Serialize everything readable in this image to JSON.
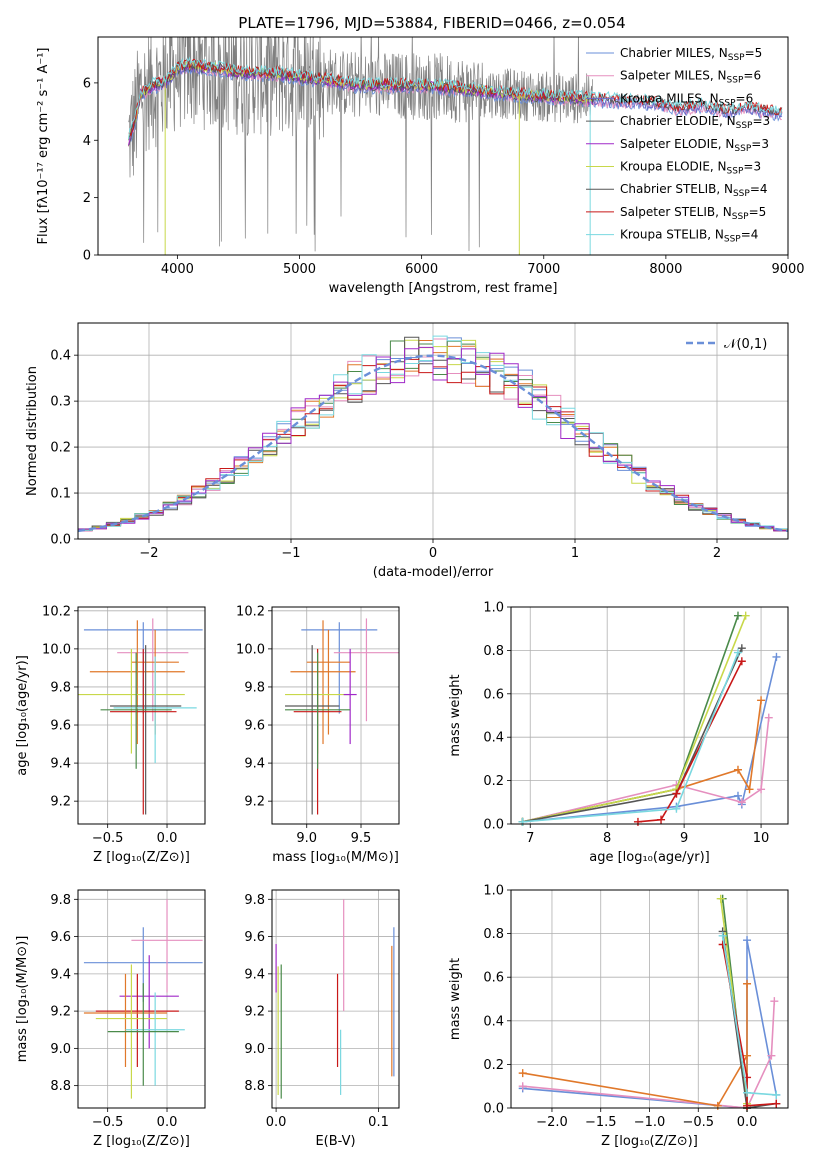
{
  "figure_title": "PLATE=1796, MJD=53884, FIBERID=0466, z=0.054",
  "colors": {
    "chabrier_miles": "#6a8fd8",
    "salpeter_miles": "#e58fbf",
    "kroupa_miles": "#6b6bc8",
    "chabrier_elodie": "#5a5a5a",
    "salpeter_elodie": "#a028c8",
    "kroupa_elodie": "#c8d84a",
    "chabrier_stelib": "#555555",
    "salpeter_stelib": "#c81818",
    "kroupa_stelib": "#7ad8e0",
    "orange": "#e0782a",
    "green": "#4a8a4a",
    "grid": "#b0b0b0",
    "data": "#808080"
  },
  "chart_data": [
    {
      "id": "spectrum",
      "type": "line",
      "title": "PLATE=1796, MJD=53884, FIBERID=0466, z=0.054",
      "xlabel": "wavelength [Angstrom, rest frame]",
      "ylabel": "Flux [fλ10⁻¹⁷ erg cm⁻² s⁻¹ A⁻¹]",
      "xlim": [
        3350,
        9000
      ],
      "ylim": [
        0,
        7.6
      ],
      "xticks": [
        4000,
        5000,
        6000,
        7000,
        8000,
        9000
      ],
      "yticks": [
        0,
        2,
        4,
        6
      ],
      "grid": false,
      "legend_position": "right",
      "legend": [
        {
          "label": "Chabrier MILES, N_SSP=5",
          "base": "Chabrier MILES, N",
          "sub": "SSP",
          "tail": "=5"
        },
        {
          "label": "Salpeter MILES, N_SSP=6",
          "base": "Salpeter MILES, N",
          "sub": "SSP",
          "tail": "=6"
        },
        {
          "label": "Kroupa MILES, N_SSP=6",
          "base": "Kroupa MILES, N",
          "sub": "SSP",
          "tail": "=6"
        },
        {
          "label": "Chabrier ELODIE, N_SSP=3",
          "base": "Chabrier ELODIE, N",
          "sub": "SSP",
          "tail": "=3"
        },
        {
          "label": "Salpeter ELODIE, N_SSP=3",
          "base": "Salpeter ELODIE, N",
          "sub": "SSP",
          "tail": "=3"
        },
        {
          "label": "Kroupa ELODIE, N_SSP=3",
          "base": "Kroupa ELODIE, N",
          "sub": "SSP",
          "tail": "=3"
        },
        {
          "label": "Chabrier STELIB, N_SSP=4",
          "base": "Chabrier STELIB, N",
          "sub": "SSP",
          "tail": "=4"
        },
        {
          "label": "Salpeter STELIB, N_SSP=5",
          "base": "Salpeter STELIB, N",
          "sub": "SSP",
          "tail": "=5"
        },
        {
          "label": "Kroupa STELIB, N_SSP=4",
          "base": "Kroupa STELIB, N",
          "sub": "SSP",
          "tail": "=4"
        }
      ],
      "continuum": {
        "x": [
          3600,
          3650,
          3700,
          3800,
          3900,
          4000,
          4100,
          4300,
          4500,
          4800,
          5000,
          5200,
          5500,
          5800,
          6000,
          6300,
          6600,
          6900,
          7100,
          7300,
          7500,
          7700,
          7900,
          8100,
          8300,
          8500,
          8700,
          8900
        ],
        "y": [
          4.0,
          4.6,
          5.6,
          5.9,
          6.0,
          6.5,
          6.6,
          6.5,
          6.35,
          6.3,
          6.2,
          6.1,
          5.9,
          5.9,
          5.9,
          5.8,
          5.65,
          5.55,
          5.5,
          5.45,
          5.4,
          5.35,
          5.3,
          5.1,
          5.2,
          5.0,
          5.1,
          4.95
        ]
      },
      "data_range": [
        3600,
        7400
      ]
    },
    {
      "id": "residuals",
      "type": "line",
      "xlabel": "(data-model)/error",
      "ylabel": "Normed distribution",
      "xlim": [
        -2.5,
        2.5
      ],
      "ylim": [
        0,
        0.47
      ],
      "xticks": [
        -2,
        -1,
        0,
        1,
        2
      ],
      "yticks": [
        0.0,
        0.1,
        0.2,
        0.3,
        0.4
      ],
      "grid": true,
      "legend": [
        {
          "label": "𝒩(0,1)"
        }
      ],
      "legend_position": "top-right",
      "bin_width": 0.1
    },
    {
      "id": "age_vs_Z",
      "type": "scatter",
      "xlabel": "Z [log₁₀(Z/Z⊙)]",
      "ylabel": "age  [log₁₀(age/yr)]",
      "xlim": [
        -0.75,
        0.32
      ],
      "ylim": [
        9.08,
        10.22
      ],
      "xticks": [
        -0.5,
        0.0
      ],
      "yticks": [
        9.2,
        9.4,
        9.6,
        9.8,
        10.0,
        10.2
      ],
      "grid": true,
      "points": [
        {
          "x": -0.2,
          "y": 10.1,
          "xerr": 0.5,
          "ylo": 9.66,
          "yhi": 10.14,
          "color": "chabrier_miles"
        },
        {
          "x": -0.12,
          "y": 9.98,
          "xerr": 0.3,
          "ylo": 9.62,
          "yhi": 10.16,
          "color": "salpeter_miles"
        },
        {
          "x": -0.1,
          "y": 9.93,
          "xerr": 0.2,
          "ylo": 9.55,
          "yhi": 10.1,
          "color": "orange"
        },
        {
          "x": -0.25,
          "y": 9.88,
          "xerr": 0.4,
          "ylo": 9.5,
          "yhi": 10.15,
          "color": "orange"
        },
        {
          "x": -0.3,
          "y": 9.76,
          "xerr": 0.45,
          "ylo": 9.45,
          "yhi": 10.0,
          "color": "kroupa_elodie"
        },
        {
          "x": -0.1,
          "y": 9.69,
          "xerr": 0.35,
          "ylo": 9.4,
          "yhi": 9.96,
          "color": "kroupa_stelib"
        },
        {
          "x": -0.18,
          "y": 9.7,
          "xerr": 0.3,
          "ylo": 9.13,
          "yhi": 10.02,
          "color": "chabrier_elodie"
        },
        {
          "x": -0.2,
          "y": 9.67,
          "xerr": 0.28,
          "ylo": 9.13,
          "yhi": 10.0,
          "color": "salpeter_stelib"
        },
        {
          "x": -0.26,
          "y": 9.68,
          "xerr": 0.3,
          "ylo": 9.37,
          "yhi": 9.98,
          "color": "green"
        }
      ]
    },
    {
      "id": "age_vs_mass",
      "type": "scatter",
      "xlabel": "mass [log₁₀(M/M⊙)]",
      "ylabel": "",
      "xlim": [
        8.68,
        9.85
      ],
      "ylim": [
        9.08,
        10.22
      ],
      "xticks": [
        9.0,
        9.5
      ],
      "yticks": [
        9.2,
        9.4,
        9.6,
        9.8,
        10.0,
        10.2
      ],
      "grid": true,
      "points": [
        {
          "x": 9.3,
          "y": 10.1,
          "xerr": 0.35,
          "ylo": 9.66,
          "yhi": 10.14,
          "color": "chabrier_miles"
        },
        {
          "x": 9.55,
          "y": 9.98,
          "xerr": 0.3,
          "ylo": 9.62,
          "yhi": 10.16,
          "color": "salpeter_miles"
        },
        {
          "x": 9.2,
          "y": 9.93,
          "xerr": 0.2,
          "ylo": 9.55,
          "yhi": 10.1,
          "color": "orange"
        },
        {
          "x": 9.15,
          "y": 9.88,
          "xerr": 0.3,
          "ylo": 9.5,
          "yhi": 10.15,
          "color": "orange"
        },
        {
          "x": 9.1,
          "y": 9.76,
          "xerr": 0.3,
          "ylo": 9.45,
          "yhi": 10.0,
          "color": "kroupa_elodie"
        },
        {
          "x": 9.4,
          "y": 9.76,
          "xerr": 0.06,
          "ylo": 9.5,
          "yhi": 10.0,
          "color": "salpeter_elodie"
        },
        {
          "x": 9.05,
          "y": 9.7,
          "xerr": 0.25,
          "ylo": 9.13,
          "yhi": 10.02,
          "color": "chabrier_elodie"
        },
        {
          "x": 9.1,
          "y": 9.67,
          "xerr": 0.22,
          "ylo": 9.13,
          "yhi": 10.0,
          "color": "salpeter_stelib"
        },
        {
          "x": 9.1,
          "y": 9.68,
          "xerr": 0.3,
          "ylo": 9.37,
          "yhi": 9.98,
          "color": "green"
        }
      ]
    },
    {
      "id": "mass_weight_vs_age",
      "type": "line",
      "xlabel": "age  [log₁₀(age/yr)]",
      "ylabel": "mass weight",
      "xlim": [
        6.75,
        10.35
      ],
      "ylim": [
        0,
        1.0
      ],
      "xticks": [
        7,
        8,
        9,
        10
      ],
      "yticks": [
        0.0,
        0.2,
        0.4,
        0.6,
        0.8,
        1.0
      ],
      "grid": true,
      "series": [
        {
          "color": "chabrier_miles",
          "x": [
            6.9,
            8.9,
            9.7,
            9.75,
            10.2
          ],
          "y": [
            0.01,
            0.08,
            0.13,
            0.09,
            0.77
          ]
        },
        {
          "color": "salpeter_miles",
          "x": [
            6.9,
            8.9,
            9.75,
            10.0,
            10.1
          ],
          "y": [
            0.01,
            0.18,
            0.1,
            0.16,
            0.49
          ]
        },
        {
          "color": "orange",
          "x": [
            6.9,
            8.9,
            9.7,
            9.85,
            10.0
          ],
          "y": [
            0.01,
            0.16,
            0.25,
            0.16,
            0.57
          ]
        },
        {
          "color": "green",
          "x": [
            6.9,
            8.9,
            9.7
          ],
          "y": [
            0.01,
            0.16,
            0.96
          ]
        },
        {
          "color": "kroupa_elodie",
          "x": [
            6.9,
            8.9,
            9.8
          ],
          "y": [
            0.01,
            0.16,
            0.96
          ]
        },
        {
          "color": "chabrier_stelib",
          "x": [
            6.9,
            8.9,
            9.75
          ],
          "y": [
            0.01,
            0.14,
            0.81
          ]
        },
        {
          "color": "salpeter_stelib",
          "x": [
            8.4,
            8.7,
            8.9,
            9.75
          ],
          "y": [
            0.01,
            0.02,
            0.14,
            0.75
          ]
        },
        {
          "color": "kroupa_stelib",
          "x": [
            6.9,
            8.9,
            9.7
          ],
          "y": [
            0.01,
            0.07,
            0.79
          ]
        }
      ]
    },
    {
      "id": "mass_vs_Z",
      "type": "scatter",
      "xlabel": "Z [log₁₀(Z/Z⊙)]",
      "ylabel": "mass [log₁₀(M/M⊙)]",
      "xlim": [
        -0.75,
        0.32
      ],
      "ylim": [
        8.68,
        9.85
      ],
      "xticks": [
        -0.5,
        0.0
      ],
      "yticks": [
        8.8,
        9.0,
        9.2,
        9.4,
        9.6,
        9.8
      ],
      "grid": true,
      "points": [
        {
          "x": -0.2,
          "y": 9.46,
          "xerr": 0.5,
          "ylo": 9.25,
          "yhi": 9.65,
          "color": "chabrier_miles"
        },
        {
          "x": 0.0,
          "y": 9.58,
          "xerr": 0.3,
          "ylo": 9.3,
          "yhi": 9.8,
          "color": "salpeter_miles"
        },
        {
          "x": -0.15,
          "y": 9.28,
          "xerr": 0.25,
          "ylo": 9.0,
          "yhi": 9.5,
          "color": "salpeter_elodie"
        },
        {
          "x": -0.25,
          "y": 9.2,
          "xerr": 0.35,
          "ylo": 8.9,
          "yhi": 9.4,
          "color": "salpeter_stelib"
        },
        {
          "x": -0.35,
          "y": 9.19,
          "xerr": 0.35,
          "ylo": 8.9,
          "yhi": 9.4,
          "color": "orange"
        },
        {
          "x": -0.3,
          "y": 9.16,
          "xerr": 0.3,
          "ylo": 8.73,
          "yhi": 9.45,
          "color": "kroupa_elodie"
        },
        {
          "x": -0.1,
          "y": 9.1,
          "xerr": 0.25,
          "ylo": 8.8,
          "yhi": 9.3,
          "color": "kroupa_stelib"
        },
        {
          "x": -0.2,
          "y": 9.09,
          "xerr": 0.3,
          "ylo": 8.8,
          "yhi": 9.35,
          "color": "green"
        }
      ]
    },
    {
      "id": "mass_vs_ebv",
      "type": "scatter",
      "xlabel": "E(B-V)",
      "ylabel": "",
      "xlim": [
        -0.004,
        0.12
      ],
      "ylim": [
        8.68,
        9.85
      ],
      "xticks": [
        0.0,
        0.1
      ],
      "yticks": [
        8.8,
        9.0,
        9.2,
        9.4,
        9.6,
        9.8
      ],
      "grid": true,
      "points": [
        {
          "x": 0.0,
          "ylo": 9.3,
          "yhi": 9.56,
          "color": "salpeter_elodie"
        },
        {
          "x": 0.002,
          "ylo": 8.75,
          "yhi": 9.44,
          "color": "kroupa_elodie"
        },
        {
          "x": 0.005,
          "ylo": 8.73,
          "yhi": 9.45,
          "color": "green"
        },
        {
          "x": 0.06,
          "ylo": 8.9,
          "yhi": 9.4,
          "color": "salpeter_stelib"
        },
        {
          "x": 0.063,
          "ylo": 8.75,
          "yhi": 9.1,
          "color": "kroupa_stelib"
        },
        {
          "x": 0.066,
          "ylo": 9.2,
          "yhi": 9.8,
          "color": "salpeter_miles"
        },
        {
          "x": 0.113,
          "ylo": 8.85,
          "yhi": 9.55,
          "color": "orange"
        },
        {
          "x": 0.115,
          "ylo": 8.85,
          "yhi": 9.65,
          "color": "chabrier_miles"
        }
      ]
    },
    {
      "id": "mass_weight_vs_Z",
      "type": "line",
      "xlabel": "Z [log₁₀(Z/Z⊙)]",
      "ylabel": "mass weight",
      "xlim": [
        -2.42,
        0.42
      ],
      "ylim": [
        0,
        1.0
      ],
      "xticks": [
        -2.0,
        -1.5,
        -1.0,
        -0.5,
        0.0
      ],
      "yticks": [
        0.0,
        0.2,
        0.4,
        0.6,
        0.8,
        1.0
      ],
      "grid": true,
      "series": [
        {
          "color": "chabrier_miles",
          "x": [
            -2.3,
            0.0,
            0.0,
            0.3
          ],
          "y": [
            0.09,
            0.0,
            0.77,
            0.06
          ]
        },
        {
          "color": "salpeter_miles",
          "x": [
            -2.3,
            0.0,
            0.25,
            0.28
          ],
          "y": [
            0.1,
            0.0,
            0.24,
            0.49
          ]
        },
        {
          "color": "orange",
          "x": [
            -2.3,
            -0.3,
            0.0,
            0.0,
            0.0
          ],
          "y": [
            0.16,
            0.01,
            0.24,
            0.57,
            0.0
          ]
        },
        {
          "color": "green",
          "x": [
            -0.25,
            0.0
          ],
          "y": [
            0.96,
            0.0
          ]
        },
        {
          "color": "kroupa_elodie",
          "x": [
            -0.27,
            0.0
          ],
          "y": [
            0.96,
            0.02
          ]
        },
        {
          "color": "chabrier_stelib",
          "x": [
            -0.25,
            0.0,
            0.3
          ],
          "y": [
            0.81,
            0.0,
            0.02
          ]
        },
        {
          "color": "salpeter_stelib",
          "x": [
            -0.25,
            0.0,
            0.0,
            0.3
          ],
          "y": [
            0.75,
            0.14,
            0.01,
            0.02
          ]
        },
        {
          "color": "kroupa_stelib",
          "x": [
            -0.25,
            0.0,
            0.3
          ],
          "y": [
            0.79,
            0.07,
            0.06
          ]
        }
      ]
    }
  ]
}
